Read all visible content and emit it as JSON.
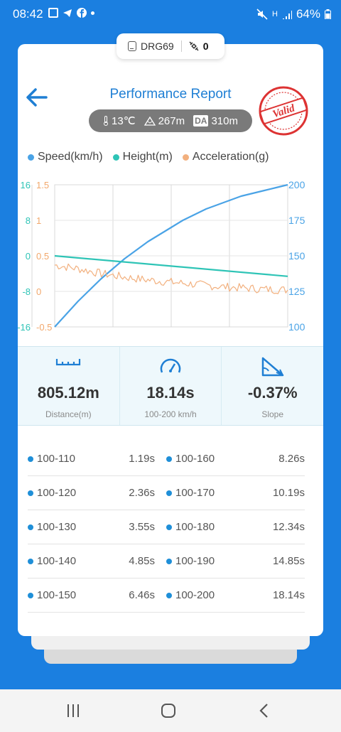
{
  "status_bar": {
    "time": "08:42",
    "battery": "64%",
    "network": "H"
  },
  "device": {
    "name": "DRG69",
    "count": "0"
  },
  "header": {
    "title": "Performance Report",
    "temp": "13℃",
    "altitude": "267m",
    "da_label": "DA",
    "density_altitude": "310m",
    "stamp": "Valid"
  },
  "legend": [
    {
      "label": "Speed(km/h)",
      "color": "#4aa3e6"
    },
    {
      "label": "Height(m)",
      "color": "#2ec4b6"
    },
    {
      "label": "Acceleration(g)",
      "color": "#f2b07e"
    }
  ],
  "chart_data": {
    "type": "line",
    "grid": true,
    "legend_position": "top",
    "axes": {
      "height_ticks": [
        "16",
        "8",
        "0",
        "-8",
        "-16"
      ],
      "accel_ticks": [
        "1.5",
        "1",
        "0.5",
        "0",
        "-0.5"
      ],
      "speed_ticks": [
        "200",
        "175",
        "150",
        "125",
        "100"
      ]
    },
    "ylim_speed": [
      100,
      200
    ],
    "ylim_height": [
      -16,
      16
    ],
    "ylim_accel": [
      -0.5,
      1.5
    ],
    "series": [
      {
        "name": "Speed(km/h)",
        "axis": "speed",
        "color": "#4aa3e6",
        "x": [
          0,
          0.05,
          0.1,
          0.15,
          0.2,
          0.25,
          0.3,
          0.35,
          0.4,
          0.45,
          0.5,
          0.55,
          0.6,
          0.65,
          0.7,
          0.75,
          0.8,
          0.85,
          0.9,
          0.95,
          1.0
        ],
        "values": [
          100,
          109,
          118,
          126,
          134,
          141,
          148,
          154,
          160,
          165,
          170,
          175,
          179,
          183,
          186,
          189,
          192,
          194,
          196,
          198,
          200
        ]
      },
      {
        "name": "Height(m)",
        "axis": "height",
        "color": "#2ec4b6",
        "x": [
          0,
          1.0
        ],
        "values": [
          0,
          -4.6
        ]
      },
      {
        "name": "Acceleration(g)",
        "axis": "accel",
        "color": "#f2b07e",
        "x": [
          0,
          0.1,
          0.2,
          0.3,
          0.4,
          0.5,
          0.6,
          0.7,
          0.8,
          0.9,
          1.0
        ],
        "values": [
          0.37,
          0.32,
          0.25,
          0.2,
          0.16,
          0.13,
          0.1,
          0.07,
          0.05,
          0.03,
          0.02
        ]
      }
    ]
  },
  "stats": [
    {
      "icon": "ruler-icon",
      "value": "805.12m",
      "label": "Distance(m)"
    },
    {
      "icon": "speedometer-icon",
      "value": "18.14s",
      "label": "100-200 km/h"
    },
    {
      "icon": "slope-icon",
      "value": "-0.37%",
      "label": "Slope"
    }
  ],
  "times": [
    {
      "left": {
        "range": "100-110",
        "time": "1.19s"
      },
      "right": {
        "range": "100-160",
        "time": "8.26s"
      }
    },
    {
      "left": {
        "range": "100-120",
        "time": "2.36s"
      },
      "right": {
        "range": "100-170",
        "time": "10.19s"
      }
    },
    {
      "left": {
        "range": "100-130",
        "time": "3.55s"
      },
      "right": {
        "range": "100-180",
        "time": "12.34s"
      }
    },
    {
      "left": {
        "range": "100-140",
        "time": "4.85s"
      },
      "right": {
        "range": "100-190",
        "time": "14.85s"
      }
    },
    {
      "left": {
        "range": "100-150",
        "time": "6.46s"
      },
      "right": {
        "range": "100-200",
        "time": "18.14s"
      }
    }
  ]
}
